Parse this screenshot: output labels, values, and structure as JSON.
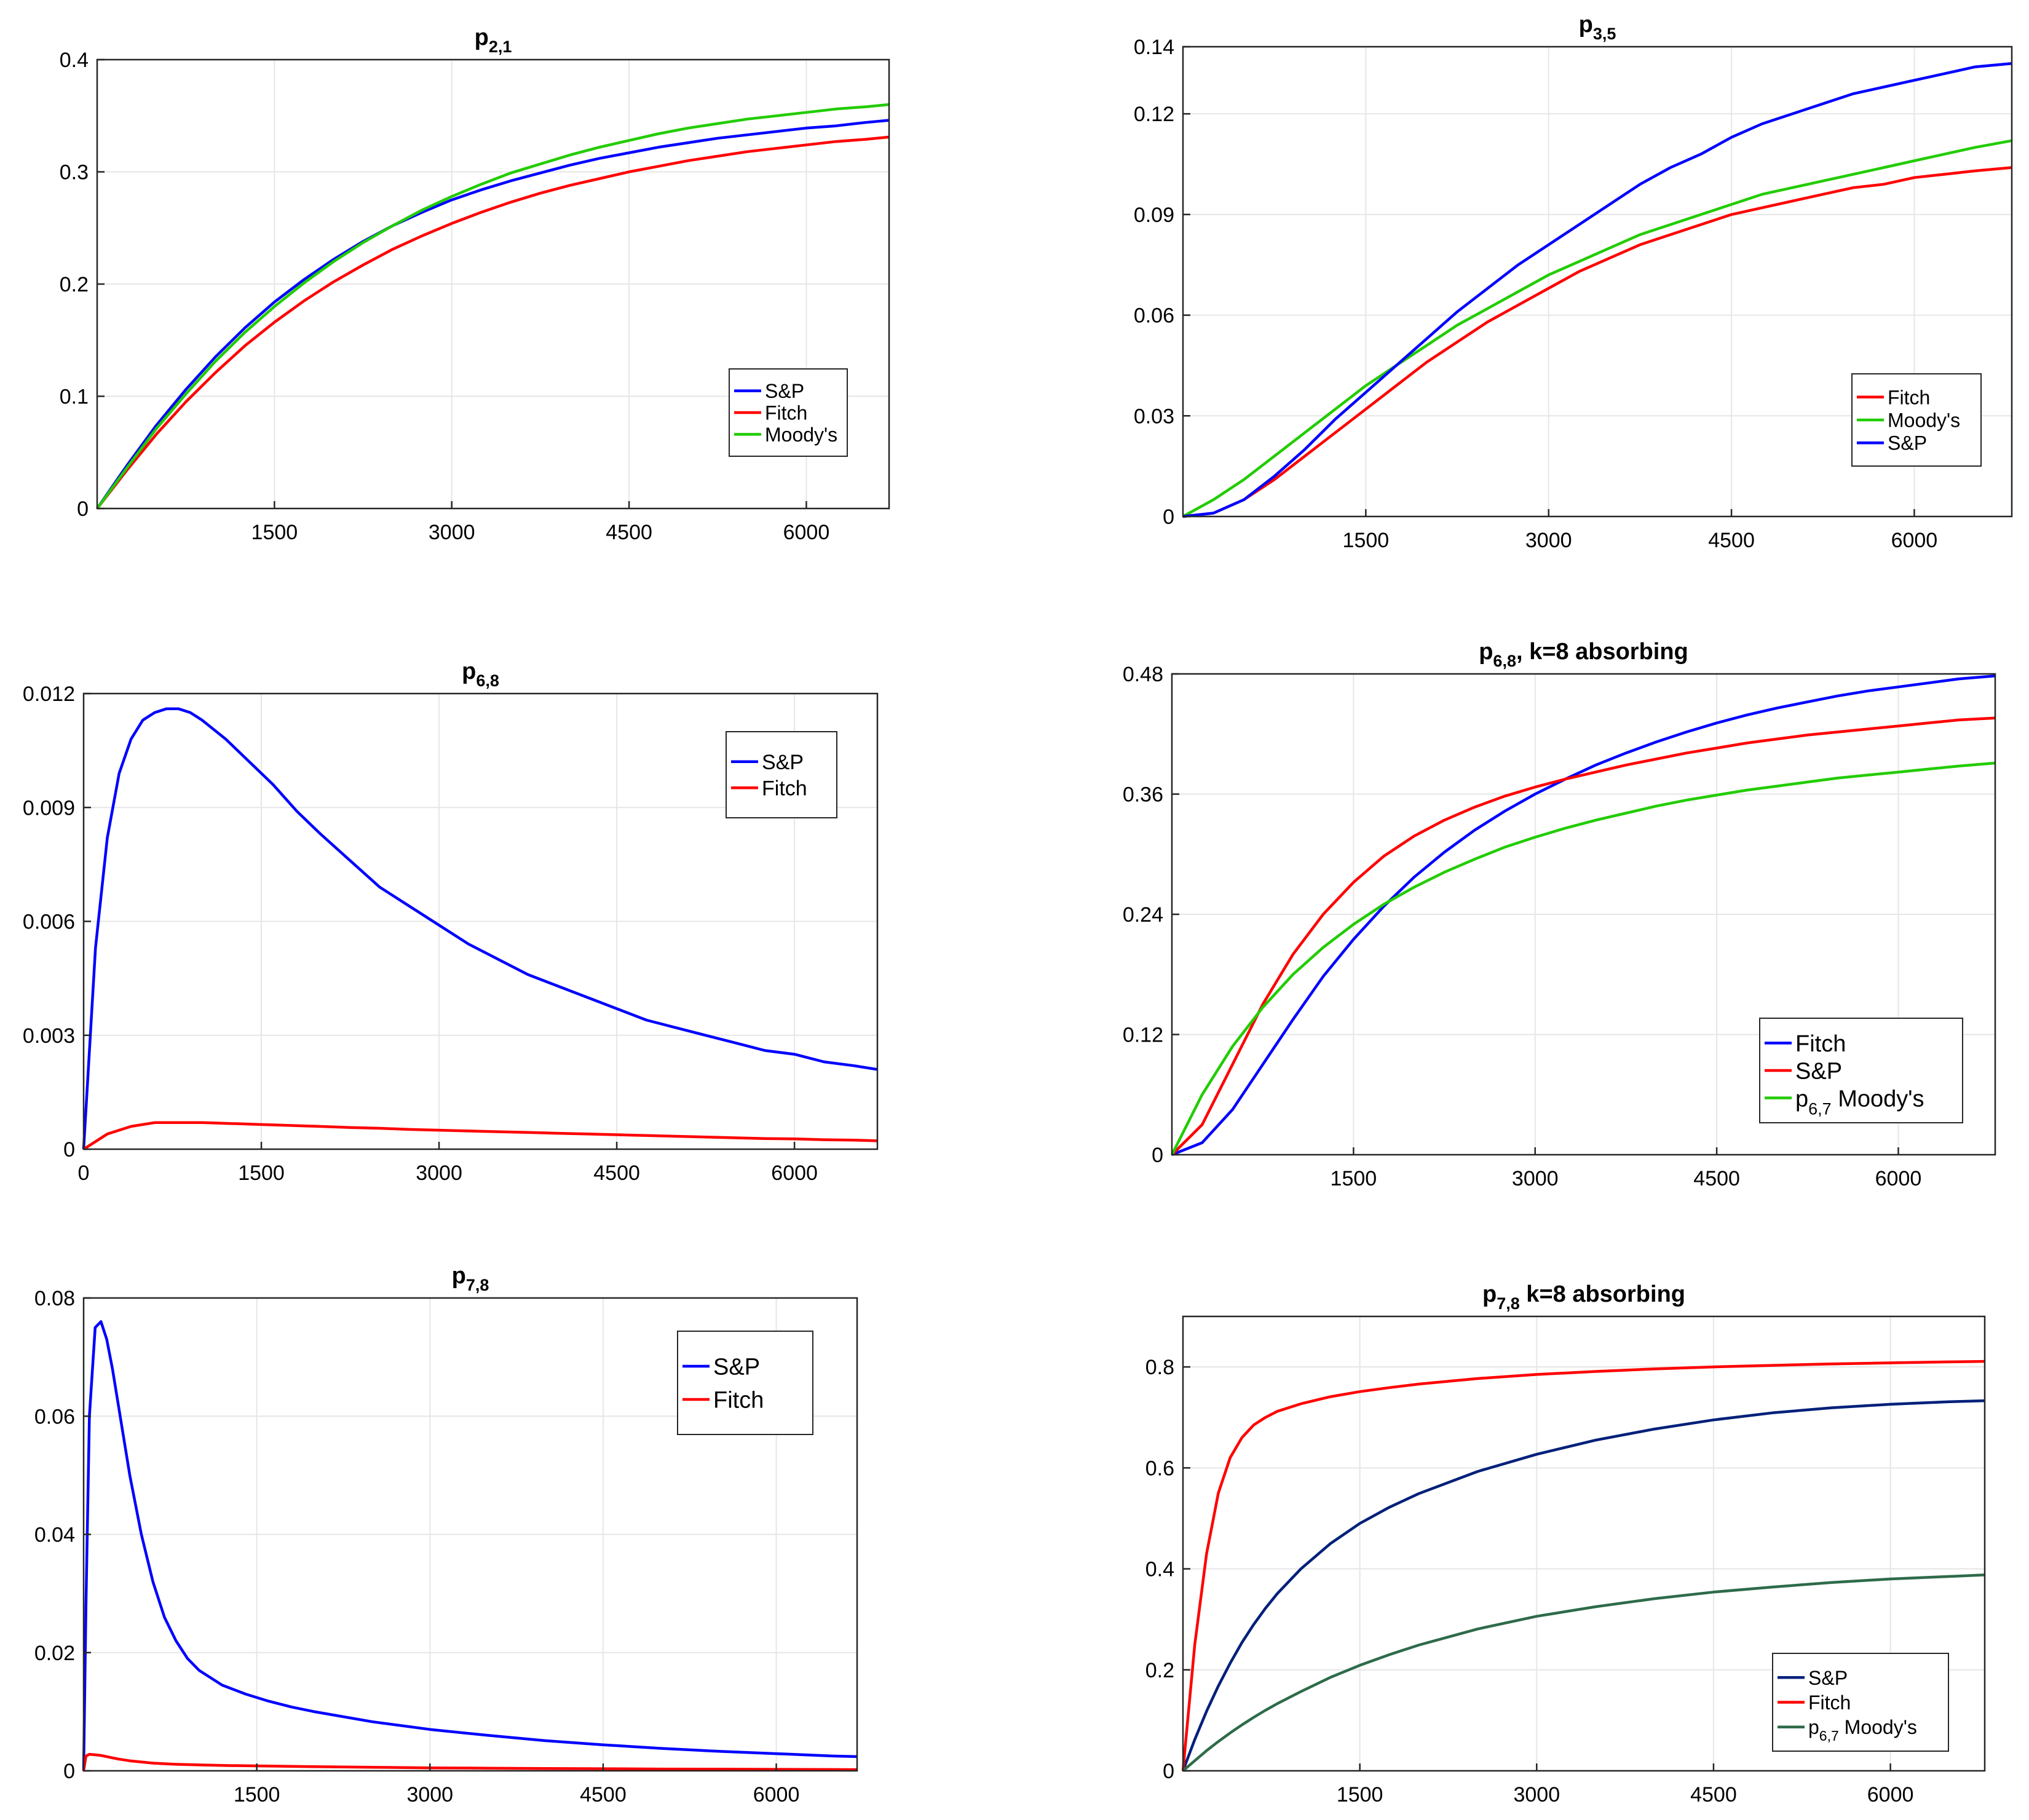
{
  "colors": {
    "blue": "#0000ff",
    "red": "#ff0000",
    "green": "#22cc00",
    "navy": "#00207a",
    "darkgreen": "#2e6b4a"
  },
  "chart_data": [
    {
      "type": "line",
      "title": "p",
      "title_sub": "2,1",
      "title_suffix": "",
      "xlim": [
        0,
        6700
      ],
      "ylim": [
        0,
        0.4
      ],
      "xticks": [
        1500,
        3000,
        4500,
        6000
      ],
      "yticks": [
        0,
        0.1,
        0.2,
        0.3,
        0.4
      ],
      "grid": true,
      "legend": "bottom-right",
      "x": [
        0,
        250,
        500,
        750,
        1000,
        1250,
        1500,
        1750,
        2000,
        2250,
        2500,
        2750,
        3000,
        3250,
        3500,
        3750,
        4000,
        4250,
        4500,
        4750,
        5000,
        5250,
        5500,
        5750,
        6000,
        6250,
        6500,
        6700
      ],
      "series": [
        {
          "name": "S&P",
          "color": "blue",
          "values": [
            0,
            0.038,
            0.074,
            0.106,
            0.135,
            0.161,
            0.184,
            0.204,
            0.222,
            0.238,
            0.252,
            0.264,
            0.275,
            0.284,
            0.292,
            0.299,
            0.306,
            0.312,
            0.317,
            0.322,
            0.326,
            0.33,
            0.333,
            0.336,
            0.339,
            0.341,
            0.344,
            0.346
          ]
        },
        {
          "name": "Fitch",
          "color": "red",
          "values": [
            0,
            0.034,
            0.066,
            0.095,
            0.121,
            0.145,
            0.166,
            0.185,
            0.202,
            0.217,
            0.231,
            0.243,
            0.254,
            0.264,
            0.273,
            0.281,
            0.288,
            0.294,
            0.3,
            0.305,
            0.31,
            0.314,
            0.318,
            0.321,
            0.324,
            0.327,
            0.329,
            0.331
          ]
        },
        {
          "name": "Moody's",
          "color": "green",
          "values": [
            0,
            0.036,
            0.071,
            0.102,
            0.131,
            0.157,
            0.18,
            0.201,
            0.22,
            0.237,
            0.252,
            0.266,
            0.278,
            0.289,
            0.299,
            0.307,
            0.315,
            0.322,
            0.328,
            0.334,
            0.339,
            0.343,
            0.347,
            0.35,
            0.353,
            0.356,
            0.358,
            0.36
          ]
        }
      ]
    },
    {
      "type": "line",
      "title": "p",
      "title_sub": "3,5",
      "title_suffix": "",
      "xlim": [
        0,
        6800
      ],
      "ylim": [
        0,
        0.14
      ],
      "xticks": [
        1500,
        3000,
        4500,
        6000
      ],
      "yticks": [
        0,
        0.03,
        0.06,
        0.09,
        0.12,
        0.14
      ],
      "grid": true,
      "legend": "bottom-right",
      "x": [
        0,
        250,
        500,
        750,
        1000,
        1250,
        1500,
        1750,
        2000,
        2250,
        2500,
        2750,
        3000,
        3250,
        3500,
        3750,
        4000,
        4250,
        4500,
        4750,
        5000,
        5250,
        5500,
        5750,
        6000,
        6250,
        6500,
        6800
      ],
      "series": [
        {
          "name": "Fitch",
          "color": "red",
          "values": [
            0,
            0.001,
            0.005,
            0.011,
            0.018,
            0.025,
            0.032,
            0.039,
            0.046,
            0.052,
            0.058,
            0.063,
            0.068,
            0.073,
            0.077,
            0.081,
            0.084,
            0.087,
            0.09,
            0.092,
            0.094,
            0.096,
            0.098,
            0.099,
            0.101,
            0.102,
            0.103,
            0.104
          ]
        },
        {
          "name": "Moody's",
          "color": "green",
          "values": [
            0,
            0.005,
            0.011,
            0.018,
            0.025,
            0.032,
            0.039,
            0.045,
            0.051,
            0.057,
            0.062,
            0.067,
            0.072,
            0.076,
            0.08,
            0.084,
            0.087,
            0.09,
            0.093,
            0.096,
            0.098,
            0.1,
            0.102,
            0.104,
            0.106,
            0.108,
            0.11,
            0.112
          ]
        },
        {
          "name": "S&P",
          "color": "blue",
          "values": [
            0,
            0.001,
            0.005,
            0.012,
            0.02,
            0.029,
            0.037,
            0.045,
            0.053,
            0.061,
            0.068,
            0.075,
            0.081,
            0.087,
            0.093,
            0.099,
            0.104,
            0.108,
            0.113,
            0.117,
            0.12,
            0.123,
            0.126,
            0.128,
            0.13,
            0.132,
            0.134,
            0.135
          ]
        }
      ]
    },
    {
      "type": "line",
      "title": "p",
      "title_sub": "6,8",
      "title_suffix": "",
      "xlim": [
        0,
        6700
      ],
      "ylim": [
        0,
        0.012
      ],
      "xticks": [
        0,
        1500,
        3000,
        4500,
        6000
      ],
      "yticks": [
        0,
        0.003,
        0.006,
        0.009,
        0.012
      ],
      "grid": true,
      "legend": "top-right",
      "x": [
        0,
        100,
        200,
        300,
        400,
        500,
        600,
        700,
        800,
        900,
        1000,
        1200,
        1400,
        1600,
        1800,
        2000,
        2250,
        2500,
        2750,
        3000,
        3250,
        3500,
        3750,
        4000,
        4250,
        4500,
        4750,
        5000,
        5250,
        5500,
        5750,
        6000,
        6250,
        6500,
        6700
      ],
      "series": [
        {
          "name": "S&P",
          "color": "blue",
          "values": [
            0,
            0.0053,
            0.0082,
            0.0099,
            0.0108,
            0.0113,
            0.0115,
            0.0116,
            0.0116,
            0.0115,
            0.0113,
            0.0108,
            0.0102,
            0.0096,
            0.0089,
            0.0083,
            0.0076,
            0.0069,
            0.0064,
            0.0059,
            0.0054,
            0.005,
            0.0046,
            0.0043,
            0.004,
            0.0037,
            0.0034,
            0.0032,
            0.003,
            0.0028,
            0.0026,
            0.0025,
            0.0023,
            0.0022,
            0.0021
          ]
        },
        {
          "name": "Fitch",
          "color": "red",
          "values": [
            0,
            0.0002,
            0.0004,
            0.0005,
            0.0006,
            0.00065,
            0.0007,
            0.0007,
            0.0007,
            0.0007,
            0.0007,
            0.00068,
            0.00066,
            0.00064,
            0.00062,
            0.0006,
            0.00057,
            0.00055,
            0.00052,
            0.0005,
            0.00048,
            0.00046,
            0.00044,
            0.00042,
            0.0004,
            0.00038,
            0.00036,
            0.00034,
            0.00032,
            0.0003,
            0.00028,
            0.00027,
            0.00025,
            0.00024,
            0.00022
          ]
        }
      ]
    },
    {
      "type": "line",
      "title": "p",
      "title_sub": "6,8",
      "title_suffix": ", k=8 absorbing",
      "xlim": [
        0,
        6800
      ],
      "ylim": [
        0,
        0.48
      ],
      "xticks": [
        1500,
        3000,
        4500,
        6000
      ],
      "yticks": [
        0,
        0.12,
        0.24,
        0.36,
        0.48
      ],
      "grid": true,
      "legend": "bottom-right",
      "x": [
        0,
        250,
        500,
        750,
        1000,
        1250,
        1500,
        1750,
        2000,
        2250,
        2500,
        2750,
        3000,
        3250,
        3500,
        3750,
        4000,
        4250,
        4500,
        4750,
        5000,
        5250,
        5500,
        5750,
        6000,
        6250,
        6500,
        6800
      ],
      "series": [
        {
          "name": "Fitch",
          "color": "blue",
          "values": [
            0,
            0.012,
            0.045,
            0.09,
            0.135,
            0.178,
            0.215,
            0.248,
            0.277,
            0.302,
            0.324,
            0.343,
            0.36,
            0.375,
            0.389,
            0.401,
            0.412,
            0.422,
            0.431,
            0.439,
            0.446,
            0.452,
            0.458,
            0.463,
            0.467,
            0.471,
            0.475,
            0.478
          ]
        },
        {
          "name": "S&P",
          "color": "red",
          "values": [
            0,
            0.03,
            0.09,
            0.15,
            0.2,
            0.24,
            0.272,
            0.298,
            0.318,
            0.334,
            0.347,
            0.358,
            0.367,
            0.375,
            0.382,
            0.389,
            0.395,
            0.401,
            0.406,
            0.411,
            0.415,
            0.419,
            0.422,
            0.425,
            0.428,
            0.431,
            0.434,
            0.436
          ]
        },
        {
          "name": "p_{6,7} Moody's",
          "color": "green",
          "values": [
            0,
            0.06,
            0.108,
            0.147,
            0.18,
            0.207,
            0.23,
            0.25,
            0.267,
            0.282,
            0.295,
            0.307,
            0.317,
            0.326,
            0.334,
            0.341,
            0.348,
            0.354,
            0.359,
            0.364,
            0.368,
            0.372,
            0.376,
            0.379,
            0.382,
            0.385,
            0.388,
            0.391
          ]
        }
      ]
    },
    {
      "type": "line",
      "title": "p",
      "title_sub": "7,8",
      "title_suffix": "",
      "xlim": [
        0,
        6700
      ],
      "ylim": [
        0,
        0.08
      ],
      "xticks": [
        1500,
        3000,
        4500,
        6000
      ],
      "yticks": [
        0,
        0.02,
        0.04,
        0.06,
        0.08
      ],
      "grid": true,
      "legend": "top-right",
      "x": [
        0,
        20,
        50,
        100,
        150,
        200,
        250,
        300,
        400,
        500,
        600,
        700,
        800,
        900,
        1000,
        1200,
        1400,
        1600,
        1800,
        2000,
        2500,
        3000,
        3500,
        4000,
        4500,
        5000,
        5500,
        6000,
        6500,
        6700
      ],
      "series": [
        {
          "name": "S&P",
          "color": "blue",
          "values": [
            0,
            0.028,
            0.06,
            0.075,
            0.076,
            0.073,
            0.068,
            0.062,
            0.05,
            0.04,
            0.032,
            0.026,
            0.022,
            0.019,
            0.017,
            0.0145,
            0.013,
            0.0118,
            0.0108,
            0.01,
            0.0083,
            0.007,
            0.006,
            0.0051,
            0.0044,
            0.0038,
            0.0033,
            0.0029,
            0.0025,
            0.0024
          ]
        },
        {
          "name": "Fitch",
          "color": "red",
          "values": [
            0,
            0.0025,
            0.0028,
            0.0027,
            0.0026,
            0.0024,
            0.0022,
            0.002,
            0.0017,
            0.0015,
            0.0013,
            0.0012,
            0.0011,
            0.00105,
            0.001,
            0.0009,
            0.00085,
            0.0008,
            0.00075,
            0.0007,
            0.0006,
            0.0005,
            0.00045,
            0.0004,
            0.00035,
            0.0003,
            0.00028,
            0.00025,
            0.00022,
            0.0002
          ]
        }
      ]
    },
    {
      "type": "line",
      "title": "p",
      "title_sub": "7,8",
      "title_suffix": " k=8 absorbing",
      "xlim": [
        0,
        6800
      ],
      "ylim": [
        0,
        0.9
      ],
      "xticks": [
        1500,
        3000,
        4500,
        6000
      ],
      "yticks": [
        0,
        0.2,
        0.4,
        0.6,
        0.8
      ],
      "grid": true,
      "legend": "bottom-right",
      "x": [
        0,
        100,
        200,
        300,
        400,
        500,
        600,
        700,
        800,
        1000,
        1250,
        1500,
        1750,
        2000,
        2500,
        3000,
        3500,
        4000,
        4500,
        5000,
        5500,
        6000,
        6500,
        6800
      ],
      "series": [
        {
          "name": "S&P",
          "color": "navy",
          "values": [
            0,
            0.062,
            0.118,
            0.168,
            0.213,
            0.254,
            0.29,
            0.322,
            0.351,
            0.4,
            0.45,
            0.49,
            0.522,
            0.549,
            0.593,
            0.627,
            0.655,
            0.677,
            0.695,
            0.709,
            0.719,
            0.726,
            0.731,
            0.733
          ]
        },
        {
          "name": "Fitch",
          "color": "red",
          "values": [
            0,
            0.25,
            0.43,
            0.55,
            0.62,
            0.66,
            0.685,
            0.7,
            0.712,
            0.727,
            0.741,
            0.751,
            0.759,
            0.766,
            0.777,
            0.785,
            0.791,
            0.796,
            0.8,
            0.803,
            0.806,
            0.808,
            0.81,
            0.811
          ]
        },
        {
          "name": "p_{6,7} Moody's",
          "color": "darkgreen",
          "values": [
            0,
            0.02,
            0.04,
            0.058,
            0.075,
            0.091,
            0.106,
            0.12,
            0.133,
            0.157,
            0.185,
            0.209,
            0.23,
            0.249,
            0.281,
            0.306,
            0.325,
            0.341,
            0.354,
            0.364,
            0.373,
            0.38,
            0.385,
            0.388
          ]
        }
      ]
    }
  ]
}
